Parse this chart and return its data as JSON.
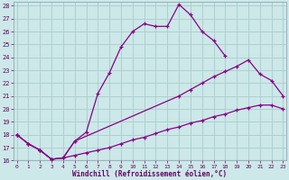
{
  "xlabel": "Windchill (Refroidissement éolien,°C)",
  "background_color": "#cce8e8",
  "grid_color": "#aacccc",
  "line_color": "#880088",
  "axis_color": "#660066",
  "x_ticks": [
    0,
    1,
    2,
    3,
    4,
    5,
    6,
    7,
    8,
    9,
    10,
    11,
    12,
    13,
    14,
    15,
    16,
    17,
    18,
    19,
    20,
    21,
    22,
    23
  ],
  "y_ticks": [
    16,
    17,
    18,
    19,
    20,
    21,
    22,
    23,
    24,
    25,
    26,
    27,
    28
  ],
  "xlim": [
    -0.3,
    23.3
  ],
  "ylim": [
    16,
    28.3
  ],
  "line1_x": [
    0,
    1,
    2,
    3,
    4,
    5,
    6,
    7,
    8,
    9,
    10,
    11,
    12,
    13,
    14,
    15,
    16,
    17,
    18,
    19,
    20,
    21,
    22,
    23
  ],
  "line1_y": [
    18,
    17.3,
    16.8,
    16.1,
    16.2,
    17.5,
    18.2,
    21.2,
    22.8,
    24.8,
    26.0,
    26.6,
    26.4,
    26.4,
    28.1,
    27.3,
    26.0,
    25.3,
    24.1,
    null,
    null,
    null,
    null,
    null
  ],
  "line2_x": [
    0,
    1,
    2,
    3,
    4,
    5,
    14,
    15,
    16,
    17,
    18,
    19,
    20,
    21,
    22,
    23
  ],
  "line2_y": [
    18,
    17.3,
    16.8,
    16.1,
    16.2,
    17.5,
    21.0,
    21.5,
    22.0,
    22.5,
    22.9,
    23.3,
    23.8,
    22.7,
    22.2,
    21.0
  ],
  "line3_x": [
    0,
    1,
    2,
    3,
    4,
    5,
    6,
    7,
    8,
    9,
    10,
    11,
    12,
    13,
    14,
    15,
    16,
    17,
    18,
    19,
    20,
    21,
    22,
    23
  ],
  "line3_y": [
    18,
    17.3,
    16.8,
    16.1,
    16.2,
    16.4,
    16.6,
    16.8,
    17.0,
    17.3,
    17.6,
    17.8,
    18.1,
    18.4,
    18.6,
    18.9,
    19.1,
    19.4,
    19.6,
    19.9,
    20.1,
    20.3,
    20.3,
    20.0
  ]
}
